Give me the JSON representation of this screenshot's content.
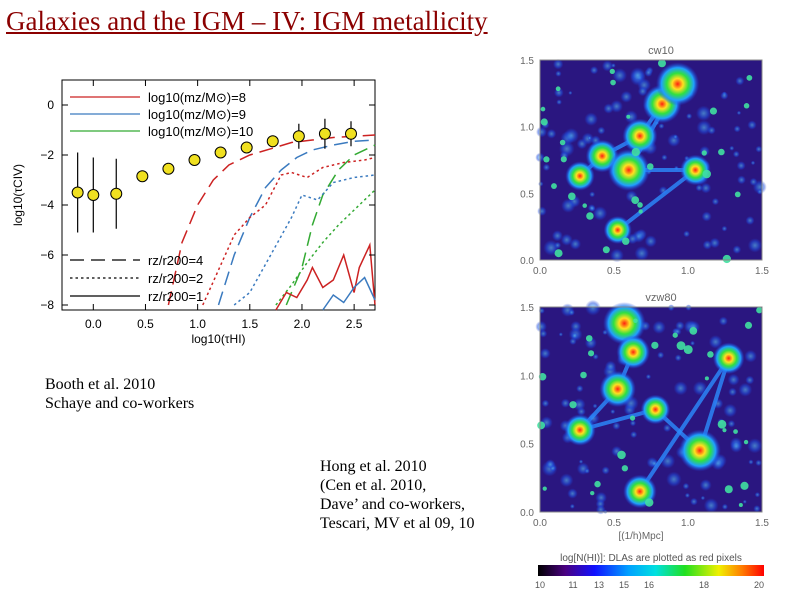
{
  "slide": {
    "title": "Galaxies and the IGM – IV: IGM metallicity"
  },
  "captions": {
    "left": [
      "Booth et al. 2010",
      "Schaye and co-workers"
    ],
    "right": [
      "Hong et al. 2010",
      "(Cen et al. 2010,",
      "Dave’ and co-workers,",
      "Tescari, MV et al 09, 10"
    ]
  },
  "chart_data": {
    "type": "line",
    "xlabel": "log10(τHI)",
    "ylabel": "log10(τCIV)",
    "xlim": [
      -0.3,
      2.7
    ],
    "ylim": [
      -8.2,
      1.0
    ],
    "xticks": [
      "0.0",
      "0.5",
      "1.0",
      "1.5",
      "2.0",
      "2.5"
    ],
    "xtick_values": [
      0.0,
      0.5,
      1.0,
      1.5,
      2.0,
      2.5
    ],
    "yticks": [
      "0",
      "−2",
      "−4",
      "−6",
      "−8"
    ],
    "ytick_values": [
      0,
      -2,
      -4,
      -6,
      -8
    ],
    "legend_colors": [
      {
        "label": "log10(mz/M⊙)=8",
        "color": "#cc2222"
      },
      {
        "label": "log10(mz/M⊙)=9",
        "color": "#3a7abf"
      },
      {
        "label": "log10(mz/M⊙)=10",
        "color": "#33aa33"
      }
    ],
    "legend_styles": [
      {
        "label": "rz/r200=4",
        "dash": "long"
      },
      {
        "label": "rz/r200=2",
        "dash": "dotted"
      },
      {
        "label": "rz/r200=1",
        "dash": "solid"
      }
    ],
    "observations": {
      "x": [
        -0.15,
        0.0,
        0.22,
        0.47,
        0.72,
        0.97,
        1.22,
        1.47,
        1.72,
        1.97,
        2.22,
        2.47
      ],
      "y": [
        -3.5,
        -3.6,
        -3.55,
        -2.85,
        -2.55,
        -2.2,
        -1.9,
        -1.7,
        -1.45,
        -1.25,
        -1.15,
        -1.15
      ],
      "yerr": [
        1.6,
        1.5,
        1.4,
        0.0,
        0.0,
        0.0,
        0.0,
        0.0,
        0.0,
        0.5,
        0.6,
        0.5
      ],
      "color": "#f0e020"
    },
    "series": [
      {
        "color": "#cc2222",
        "style": "long",
        "x": [
          0.72,
          0.85,
          1.0,
          1.15,
          1.3,
          1.5,
          1.7,
          1.9,
          2.1,
          2.3,
          2.5,
          2.7
        ],
        "y": [
          -8.0,
          -5.5,
          -4.0,
          -3.0,
          -2.4,
          -2.0,
          -1.75,
          -1.5,
          -1.4,
          -1.3,
          -1.25,
          -1.2
        ]
      },
      {
        "color": "#3a7abf",
        "style": "long",
        "x": [
          1.2,
          1.35,
          1.5,
          1.65,
          1.8,
          1.95,
          2.1,
          2.3,
          2.5,
          2.7
        ],
        "y": [
          -8.0,
          -6.0,
          -4.5,
          -3.3,
          -2.6,
          -2.1,
          -1.8,
          -1.6,
          -1.45,
          -1.4
        ]
      },
      {
        "color": "#33aa33",
        "style": "long",
        "x": [
          1.85,
          2.0,
          2.1,
          2.2,
          2.35,
          2.5,
          2.7
        ],
        "y": [
          -8.0,
          -6.5,
          -4.8,
          -3.6,
          -2.6,
          -2.0,
          -1.6
        ]
      },
      {
        "color": "#cc2222",
        "style": "dotted",
        "x": [
          1.05,
          1.2,
          1.35,
          1.5,
          1.65,
          1.8,
          1.9,
          2.05,
          2.2,
          2.4,
          2.6,
          2.7
        ],
        "y": [
          -8.0,
          -6.6,
          -5.2,
          -4.5,
          -4.0,
          -2.8,
          -2.7,
          -2.9,
          -2.5,
          -2.3,
          -2.2,
          -2.1
        ]
      },
      {
        "color": "#3a7abf",
        "style": "dotted",
        "x": [
          1.35,
          1.5,
          1.7,
          1.9,
          2.0,
          2.15,
          2.3,
          2.5,
          2.7
        ],
        "y": [
          -8.0,
          -7.5,
          -6.0,
          -4.5,
          -3.6,
          -3.8,
          -3.1,
          -2.9,
          -2.8
        ]
      },
      {
        "color": "#33aa33",
        "style": "dotted",
        "x": [
          1.75,
          1.9,
          2.05,
          2.2,
          2.35,
          2.5,
          2.7
        ],
        "y": [
          -8.0,
          -7.2,
          -6.3,
          -5.5,
          -4.8,
          -4.2,
          -3.4
        ]
      },
      {
        "color": "#cc2222",
        "style": "solid",
        "x": [
          1.75,
          1.85,
          1.95,
          2.05,
          2.1,
          2.2,
          2.3,
          2.4,
          2.5,
          2.55,
          2.65,
          2.7
        ],
        "y": [
          -8.2,
          -7.5,
          -7.7,
          -7.0,
          -6.5,
          -7.3,
          -7.0,
          -6.0,
          -7.5,
          -6.5,
          -5.6,
          -8.0
        ]
      },
      {
        "color": "#3a7abf",
        "style": "solid",
        "x": [
          2.2,
          2.3,
          2.4,
          2.5,
          2.6,
          2.7
        ],
        "y": [
          -8.2,
          -7.6,
          -7.9,
          -7.3,
          -6.9,
          -7.8
        ]
      }
    ]
  },
  "sim_panels": [
    {
      "title": "cw10",
      "xticks": [
        "0.0",
        "0.5",
        "1.0",
        "1.5"
      ],
      "yticks": [
        "1.5",
        "1.0",
        "0.5",
        "0.0"
      ],
      "xlabel": ""
    },
    {
      "title": "vzw80",
      "xticks": [
        "0.0",
        "0.5",
        "1.0",
        "1.5"
      ],
      "yticks": [
        "1.5",
        "1.0",
        "0.5",
        "0.0"
      ],
      "xlabel": "[(1/h)Mpc]"
    }
  ],
  "colorbar": {
    "title": "log[N(HI)]: DLAs are plotted as red pixels",
    "ticks": [
      "10",
      "11",
      "13",
      "15",
      "16",
      "18",
      "20"
    ]
  }
}
